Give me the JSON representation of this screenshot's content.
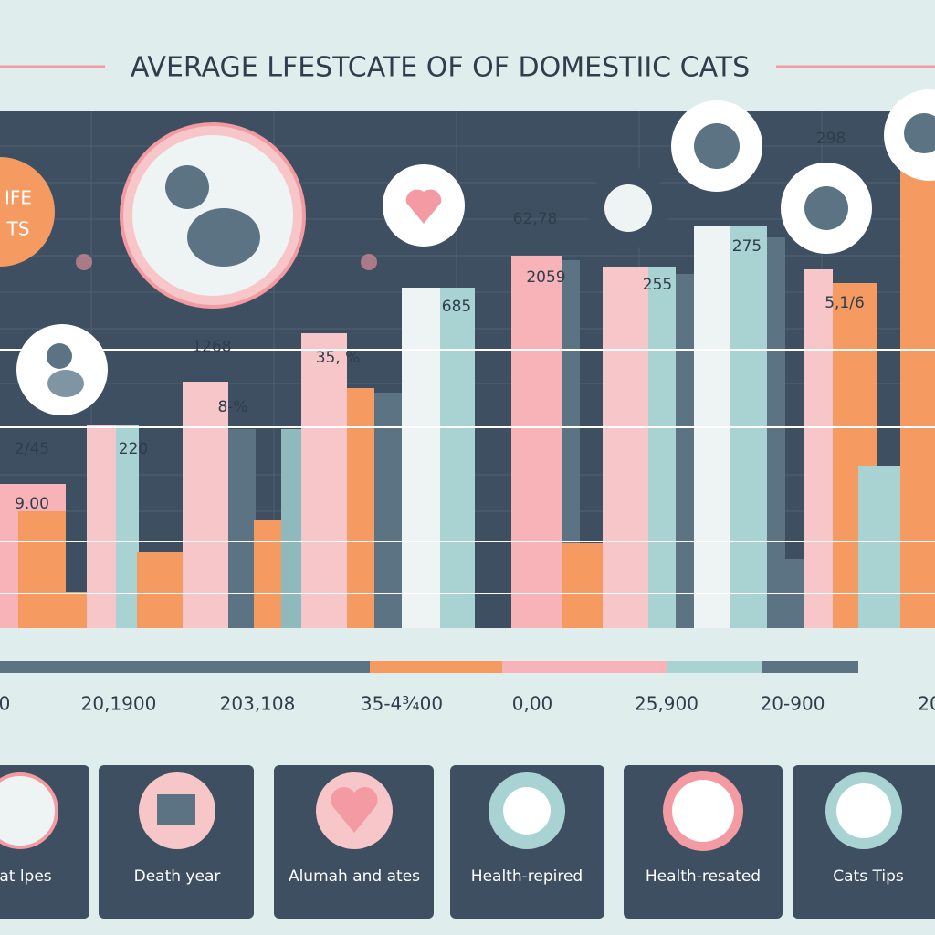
{
  "title": "AVERAGE LFESTCATE OF OF  DOMESTIIC CATS",
  "badge": [
    "IFE",
    "TS"
  ],
  "bar_labels": [
    "2/45",
    "9.00",
    "220",
    "1268",
    "8-%",
    "35, %",
    "685",
    "62,78",
    "2059",
    "255",
    "275",
    "298",
    "5,1/6"
  ],
  "axis_labels": [
    "0",
    "20,1900",
    "203,108",
    "35-4¾00",
    "0,00",
    "25,900",
    "20-900",
    "20"
  ],
  "cards": [
    "at lpes",
    "Death year",
    "Alumah and ates",
    "Health-repired",
    "Health-resated",
    "Cats Tips"
  ]
}
